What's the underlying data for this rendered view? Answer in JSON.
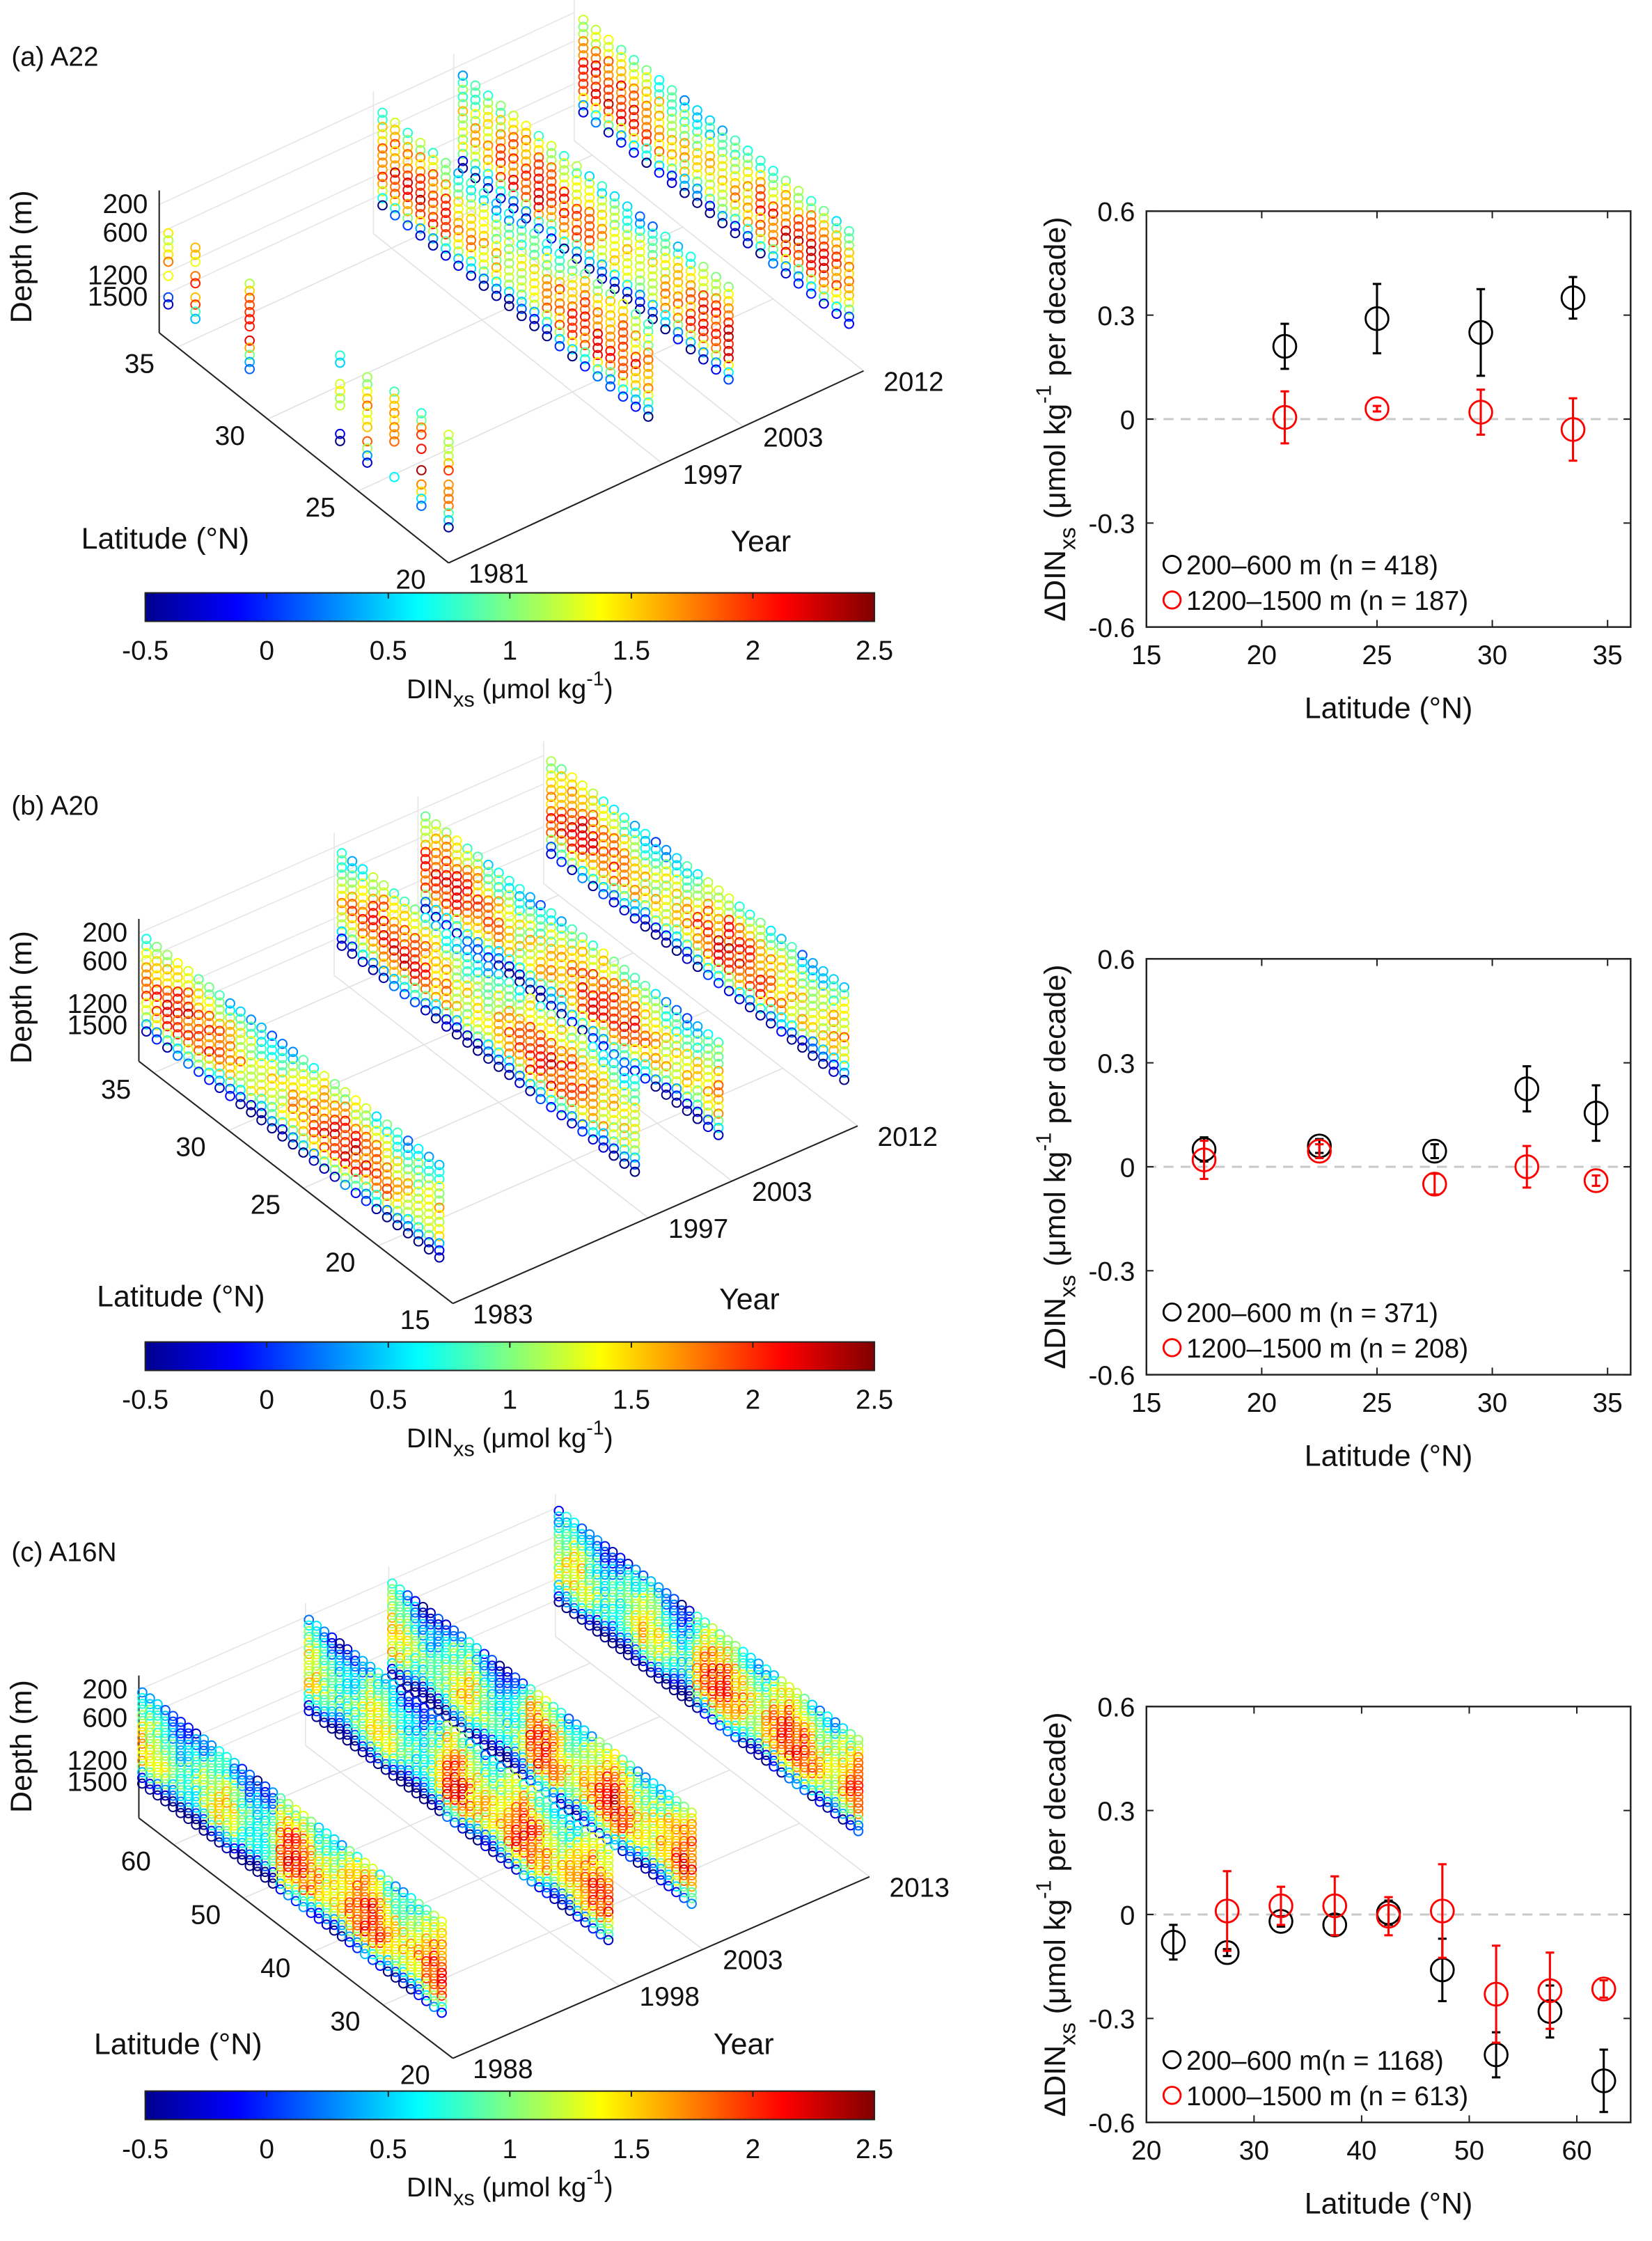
{
  "chart_data": [
    {
      "type": "scatter",
      "panel_label": "(a) A22",
      "section_map": {
        "type": "scatter3d",
        "zlabel": "Depth (m)",
        "xlabel": "Latitude (°N)",
        "ylabel": "Year",
        "depth_ticks": [
          "200",
          "600",
          "1200",
          "1500"
        ],
        "lat_ticks": [
          "20",
          "25",
          "30",
          "35"
        ],
        "year_ticks": [
          "1981",
          "1997",
          "2003",
          "2012"
        ],
        "years": [
          1981,
          1997,
          2003,
          2012
        ],
        "lat_range": [
          20,
          36
        ]
      },
      "colorbar": {
        "label_parts": [
          "DIN",
          "xs",
          " (μmol kg",
          "-1",
          ")"
        ],
        "ticks": [
          "-0.5",
          "0",
          "0.5",
          "1",
          "1.5",
          "2",
          "2.5"
        ],
        "range": [
          -0.5,
          2.5
        ]
      },
      "trend": {
        "type": "scatter",
        "xlabel": "Latitude (°N)",
        "ylabel_parts": [
          "ΔDIN",
          "xs",
          " (μmol kg",
          "-1",
          " per decade)"
        ],
        "xlim": [
          15,
          36
        ],
        "ylim": [
          -0.6,
          0.6
        ],
        "xticks": [
          "15",
          "20",
          "25",
          "30",
          "35"
        ],
        "yticks": [
          "-0.6",
          "-0.3",
          "0",
          "0.3",
          "0.6"
        ],
        "series": [
          {
            "name": "200–600 m (n = 418)",
            "color": "#000000",
            "x": [
              21,
              25,
              29.5,
              33.5
            ],
            "y": [
              0.21,
              0.29,
              0.25,
              0.35
            ],
            "err": [
              0.065,
              0.1,
              0.125,
              0.06
            ]
          },
          {
            "name": "1200–1500 m (n = 187)",
            "color": "#ff0000",
            "x": [
              21,
              25,
              29.5,
              33.5
            ],
            "y": [
              0.005,
              0.03,
              0.02,
              -0.03
            ],
            "err": [
              0.075,
              0.008,
              0.065,
              0.09
            ]
          }
        ]
      }
    },
    {
      "type": "scatter",
      "panel_label": "(b) A20",
      "section_map": {
        "type": "scatter3d",
        "zlabel": "Depth (m)",
        "xlabel": "Latitude (°N)",
        "ylabel": "Year",
        "depth_ticks": [
          "200",
          "600",
          "1200",
          "1500"
        ],
        "lat_ticks": [
          "15",
          "20",
          "25",
          "30",
          "35"
        ],
        "year_ticks": [
          "1983",
          "1997",
          "2003",
          "2012"
        ],
        "years": [
          1983,
          1997,
          2003,
          2012
        ],
        "lat_range": [
          15,
          36
        ]
      },
      "colorbar": {
        "label_parts": [
          "DIN",
          "xs",
          " (μmol kg",
          "-1",
          ")"
        ],
        "ticks": [
          "-0.5",
          "0",
          "0.5",
          "1",
          "1.5",
          "2",
          "2.5"
        ],
        "range": [
          -0.5,
          2.5
        ]
      },
      "trend": {
        "type": "scatter",
        "xlabel": "Latitude (°N)",
        "ylabel_parts": [
          "ΔDIN",
          "xs",
          " (μmol kg",
          "-1",
          " per decade)"
        ],
        "xlim": [
          15,
          36
        ],
        "ylim": [
          -0.6,
          0.6
        ],
        "xticks": [
          "15",
          "20",
          "25",
          "30",
          "35"
        ],
        "yticks": [
          "-0.6",
          "-0.3",
          "0",
          "0.3",
          "0.6"
        ],
        "series": [
          {
            "name": "200–600 m (n = 371)",
            "color": "#000000",
            "x": [
              17.5,
              22.5,
              27.5,
              31.5,
              34.5
            ],
            "y": [
              0.05,
              0.06,
              0.045,
              0.225,
              0.155
            ],
            "err": [
              0.035,
              0.02,
              0.02,
              0.065,
              0.08
            ]
          },
          {
            "name": "1200–1500 m (n = 208)",
            "color": "#ff0000",
            "x": [
              17.5,
              22.5,
              27.5,
              31.5,
              34.5
            ],
            "y": [
              0.02,
              0.045,
              -0.05,
              0.0,
              -0.04
            ],
            "err": [
              0.055,
              0.02,
              0.03,
              0.06,
              0.015
            ]
          }
        ]
      }
    },
    {
      "type": "scatter",
      "panel_label": "(c) A16N",
      "section_map": {
        "type": "scatter3d",
        "zlabel": "Depth (m)",
        "xlabel": "Latitude (°N)",
        "ylabel": "Year",
        "depth_ticks": [
          "200",
          "600",
          "1200",
          "1500"
        ],
        "lat_ticks": [
          "20",
          "30",
          "40",
          "50",
          "60"
        ],
        "year_ticks": [
          "1988",
          "1998",
          "2003",
          "2013"
        ],
        "years": [
          1988,
          1998,
          2003,
          2013
        ],
        "lat_range": [
          20,
          65
        ]
      },
      "colorbar": {
        "label_parts": [
          "DIN",
          "xs",
          " (μmol kg",
          "-1",
          ")"
        ],
        "ticks": [
          "-0.5",
          "0",
          "0.5",
          "1",
          "1.5",
          "2",
          "2.5"
        ],
        "range": [
          -0.5,
          2.5
        ]
      },
      "trend": {
        "type": "scatter",
        "xlabel": "Latitude (°N)",
        "ylabel_parts": [
          "ΔDIN",
          "xs",
          " (μmol kg",
          "-1",
          " per decade)"
        ],
        "xlim": [
          20,
          65
        ],
        "ylim": [
          -0.6,
          0.6
        ],
        "xticks": [
          "20",
          "30",
          "40",
          "50",
          "60"
        ],
        "yticks": [
          "-0.6",
          "-0.3",
          "0",
          "0.3",
          "0.6"
        ],
        "series": [
          {
            "name": "200–600 m(n = 1168)",
            "color": "#000000",
            "x": [
              22.5,
              27.5,
              32.5,
              37.5,
              42.5,
              47.5,
              52.5,
              57.5,
              62.5
            ],
            "y": [
              -0.08,
              -0.11,
              -0.02,
              -0.03,
              0.005,
              -0.16,
              -0.405,
              -0.28,
              -0.48
            ],
            "err": [
              0.05,
              0.01,
              0.015,
              0.03,
              0.035,
              0.09,
              0.065,
              0.075,
              0.09
            ]
          },
          {
            "name": "1000–1500 m (n = 613)",
            "color": "#ff0000",
            "x": [
              27.5,
              32.5,
              37.5,
              42.5,
              47.5,
              52.5,
              57.5,
              62.5
            ],
            "y": [
              0.01,
              0.025,
              0.025,
              -0.005,
              0.01,
              -0.23,
              -0.22,
              -0.215
            ],
            "err": [
              0.115,
              0.055,
              0.085,
              0.055,
              0.135,
              0.14,
              0.11,
              0.025
            ]
          }
        ]
      }
    }
  ]
}
